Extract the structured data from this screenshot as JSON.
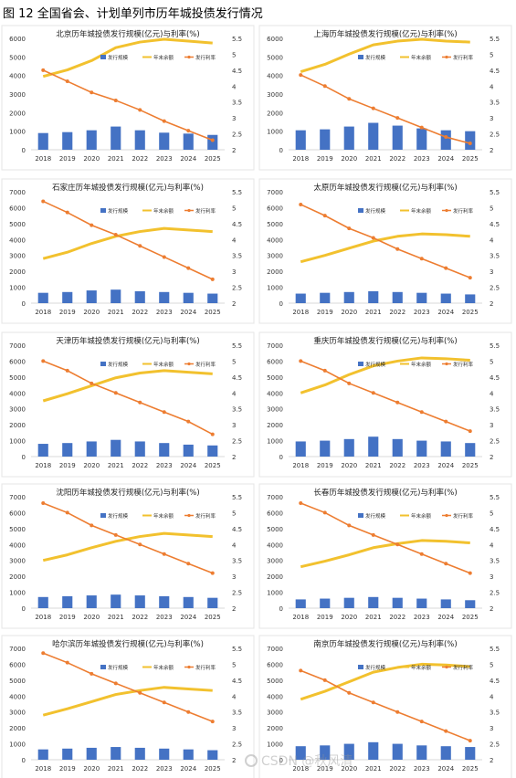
{
  "figure_title": "图 12 全国省会、计划单列市历年城投债发行情况",
  "legend": {
    "bar": "发行规模",
    "line_balance": "年末余额",
    "line_rate": "发行利率"
  },
  "colors": {
    "bar": "#4472C4",
    "balance": "#F2C12E",
    "rate": "#ED7D31",
    "axis_text": "#333333",
    "grid": "#D9D9D9"
  },
  "watermark": "CSDN @秋风清",
  "chart_data": [
    {
      "type": "bar+line",
      "title": "北京历年城投债发行规模(亿元)与利率(%)",
      "categories": [
        "2018",
        "2019",
        "2020",
        "2021",
        "2022",
        "2023",
        "2024",
        "2025"
      ],
      "ylim": [
        0,
        6000
      ],
      "y_ticks": [
        "0",
        "1000",
        "2000",
        "3000",
        "4000",
        "5000",
        "6000"
      ],
      "y2lim": [
        2,
        5.5
      ],
      "y2_ticks": [
        "2",
        "2.5",
        "3",
        "3.5",
        "4",
        "4.5",
        "5",
        "5.5"
      ],
      "series": [
        {
          "name": "发行规模",
          "axis": "left",
          "values": [
            900,
            950,
            1050,
            1250,
            1050,
            920,
            870,
            800
          ]
        },
        {
          "name": "年末余额",
          "axis": "left",
          "values": [
            3950,
            4300,
            4800,
            5500,
            5800,
            5950,
            5850,
            5750
          ]
        },
        {
          "name": "发行利率",
          "axis": "right",
          "values": [
            4.5,
            4.15,
            3.8,
            3.55,
            3.25,
            2.9,
            2.6,
            2.3
          ]
        }
      ]
    },
    {
      "type": "bar+line",
      "title": "上海历年城投债发行规模(亿元)与利率(%)",
      "categories": [
        "2018",
        "2019",
        "2020",
        "2021",
        "2022",
        "2023",
        "2024",
        "2025"
      ],
      "ylim": [
        0,
        6000
      ],
      "y_ticks": [
        "0",
        "1000",
        "2000",
        "3000",
        "4000",
        "5000",
        "6000"
      ],
      "y2lim": [
        2,
        5.5
      ],
      "y2_ticks": [
        "2",
        "2.5",
        "3",
        "3.5",
        "4",
        "4.5",
        "5",
        "5.5"
      ],
      "series": [
        {
          "name": "发行规模",
          "axis": "left",
          "values": [
            1050,
            1100,
            1250,
            1450,
            1300,
            1150,
            1050,
            1000
          ]
        },
        {
          "name": "年末余额",
          "axis": "left",
          "values": [
            4200,
            4600,
            5150,
            5650,
            5850,
            5950,
            5850,
            5800
          ]
        },
        {
          "name": "发行利率",
          "axis": "right",
          "values": [
            4.35,
            4.0,
            3.6,
            3.3,
            3.0,
            2.7,
            2.4,
            2.2
          ]
        }
      ]
    },
    {
      "type": "bar+line",
      "title": "石家庄历年城投债发行规模(亿元)与利率(%)",
      "categories": [
        "2018",
        "2019",
        "2020",
        "2021",
        "2022",
        "2023",
        "2024",
        "2025"
      ],
      "ylim": [
        0,
        7000
      ],
      "y_ticks": [
        "0",
        "1000",
        "2000",
        "3000",
        "4000",
        "5000",
        "6000",
        "7000"
      ],
      "y2lim": [
        2,
        5.5
      ],
      "y2_ticks": [
        "2",
        "2.5",
        "3",
        "3.5",
        "4",
        "4.5",
        "5",
        "5.5"
      ],
      "series": [
        {
          "name": "发行规模",
          "axis": "left",
          "values": [
            650,
            700,
            800,
            850,
            750,
            700,
            650,
            600
          ]
        },
        {
          "name": "年末余额",
          "axis": "left",
          "values": [
            2800,
            3200,
            3750,
            4200,
            4500,
            4700,
            4600,
            4500
          ]
        },
        {
          "name": "发行利率",
          "axis": "right",
          "values": [
            5.2,
            4.85,
            4.45,
            4.15,
            3.8,
            3.45,
            3.1,
            2.75
          ]
        }
      ]
    },
    {
      "type": "bar+line",
      "title": "太原历年城投债发行规模(亿元)与利率(%)",
      "categories": [
        "2018",
        "2019",
        "2020",
        "2021",
        "2022",
        "2023",
        "2024",
        "2025"
      ],
      "ylim": [
        0,
        7000
      ],
      "y_ticks": [
        "0",
        "1000",
        "2000",
        "3000",
        "4000",
        "5000",
        "6000",
        "7000"
      ],
      "y2lim": [
        2,
        5.5
      ],
      "y2_ticks": [
        "2",
        "2.5",
        "3",
        "3.5",
        "4",
        "4.5",
        "5",
        "5.5"
      ],
      "series": [
        {
          "name": "发行规模",
          "axis": "left",
          "values": [
            600,
            650,
            700,
            750,
            700,
            650,
            600,
            550
          ]
        },
        {
          "name": "年末余额",
          "axis": "left",
          "values": [
            2600,
            3000,
            3450,
            3900,
            4200,
            4350,
            4300,
            4200
          ]
        },
        {
          "name": "发行利率",
          "axis": "right",
          "values": [
            5.1,
            4.75,
            4.35,
            4.05,
            3.7,
            3.4,
            3.1,
            2.8
          ]
        }
      ]
    },
    {
      "type": "bar+line",
      "title": "天津历年城投债发行规模(亿元)与利率(%)",
      "categories": [
        "2018",
        "2019",
        "2020",
        "2021",
        "2022",
        "2023",
        "2024",
        "2025"
      ],
      "ylim": [
        0,
        7000
      ],
      "y_ticks": [
        "0",
        "1000",
        "2000",
        "3000",
        "4000",
        "5000",
        "6000",
        "7000"
      ],
      "y2lim": [
        2,
        5.5
      ],
      "y2_ticks": [
        "2",
        "2.5",
        "3",
        "3.5",
        "4",
        "4.5",
        "5",
        "5.5"
      ],
      "series": [
        {
          "name": "发行规模",
          "axis": "left",
          "values": [
            800,
            850,
            950,
            1050,
            950,
            850,
            750,
            700
          ]
        },
        {
          "name": "年末余额",
          "axis": "left",
          "values": [
            3500,
            3950,
            4450,
            4950,
            5250,
            5400,
            5300,
            5200
          ]
        },
        {
          "name": "发行利率",
          "axis": "right",
          "values": [
            5.0,
            4.7,
            4.3,
            4.0,
            3.7,
            3.4,
            3.1,
            2.7
          ]
        }
      ]
    },
    {
      "type": "bar+line",
      "title": "重庆历年城投债发行规模(亿元)与利率(%)",
      "categories": [
        "2018",
        "2019",
        "2020",
        "2021",
        "2022",
        "2023",
        "2024",
        "2025"
      ],
      "ylim": [
        0,
        7000
      ],
      "y_ticks": [
        "0",
        "1000",
        "2000",
        "3000",
        "4000",
        "5000",
        "6000",
        "7000"
      ],
      "y2lim": [
        2,
        5.5
      ],
      "y2_ticks": [
        "2",
        "2.5",
        "3",
        "3.5",
        "4",
        "4.5",
        "5",
        "5.5"
      ],
      "series": [
        {
          "name": "发行规模",
          "axis": "left",
          "values": [
            950,
            1000,
            1100,
            1250,
            1100,
            1000,
            950,
            850
          ]
        },
        {
          "name": "年末余额",
          "axis": "left",
          "values": [
            4000,
            4500,
            5150,
            5700,
            6000,
            6200,
            6150,
            6050
          ]
        },
        {
          "name": "发行利率",
          "axis": "right",
          "values": [
            5.0,
            4.7,
            4.3,
            4.0,
            3.7,
            3.4,
            3.1,
            2.8
          ]
        }
      ]
    },
    {
      "type": "bar+line",
      "title": "沈阳历年城投债发行规模(亿元)与利率(%)",
      "categories": [
        "2018",
        "2019",
        "2020",
        "2021",
        "2022",
        "2023",
        "2024",
        "2025"
      ],
      "ylim": [
        0,
        7000
      ],
      "y_ticks": [
        "0",
        "1000",
        "2000",
        "3000",
        "4000",
        "5000",
        "6000",
        "7000"
      ],
      "y2lim": [
        2,
        5.5
      ],
      "y2_ticks": [
        "2",
        "2.5",
        "3",
        "3.5",
        "4",
        "4.5",
        "5",
        "5.5"
      ],
      "series": [
        {
          "name": "发行规模",
          "axis": "left",
          "values": [
            700,
            750,
            800,
            850,
            800,
            750,
            700,
            650
          ]
        },
        {
          "name": "年末余额",
          "axis": "left",
          "values": [
            3000,
            3350,
            3800,
            4200,
            4500,
            4700,
            4600,
            4500
          ]
        },
        {
          "name": "发行利率",
          "axis": "right",
          "values": [
            5.3,
            5.0,
            4.6,
            4.3,
            4.0,
            3.7,
            3.4,
            3.1
          ]
        }
      ]
    },
    {
      "type": "bar+line",
      "title": "长春历年城投债发行规模(亿元)与利率(%)",
      "categories": [
        "2018",
        "2019",
        "2020",
        "2021",
        "2022",
        "2023",
        "2024",
        "2025"
      ],
      "ylim": [
        0,
        7000
      ],
      "y_ticks": [
        "0",
        "1000",
        "2000",
        "3000",
        "4000",
        "5000",
        "6000",
        "7000"
      ],
      "y2lim": [
        2,
        5.5
      ],
      "y2_ticks": [
        "2",
        "2.5",
        "3",
        "3.5",
        "4",
        "4.5",
        "5",
        "5.5"
      ],
      "series": [
        {
          "name": "发行规模",
          "axis": "left",
          "values": [
            550,
            600,
            650,
            700,
            650,
            600,
            550,
            500
          ]
        },
        {
          "name": "年末余额",
          "axis": "left",
          "values": [
            2600,
            2950,
            3350,
            3800,
            4050,
            4250,
            4200,
            4100
          ]
        },
        {
          "name": "发行利率",
          "axis": "right",
          "values": [
            5.3,
            5.0,
            4.6,
            4.3,
            4.0,
            3.7,
            3.4,
            3.1
          ]
        }
      ]
    },
    {
      "type": "bar+line",
      "title": "哈尔滨历年城投债发行规模(亿元)与利率(%)",
      "categories": [
        "2018",
        "2019",
        "2020",
        "2021",
        "2022",
        "2023",
        "2024",
        "2025"
      ],
      "ylim": [
        0,
        7000
      ],
      "y_ticks": [
        "0",
        "1000",
        "2000",
        "3000",
        "4000",
        "5000",
        "6000",
        "7000"
      ],
      "y2lim": [
        2,
        5.5
      ],
      "y2_ticks": [
        "2",
        "2.5",
        "3",
        "3.5",
        "4",
        "4.5",
        "5",
        "5.5"
      ],
      "series": [
        {
          "name": "发行规模",
          "axis": "left",
          "values": [
            650,
            700,
            750,
            800,
            750,
            700,
            650,
            600
          ]
        },
        {
          "name": "年末余额",
          "axis": "left",
          "values": [
            2800,
            3200,
            3650,
            4100,
            4350,
            4550,
            4450,
            4350
          ]
        },
        {
          "name": "发行利率",
          "axis": "right",
          "values": [
            5.35,
            5.05,
            4.7,
            4.4,
            4.1,
            3.8,
            3.5,
            3.2
          ]
        }
      ]
    },
    {
      "type": "bar+line",
      "title": "南京历年城投债发行规模(亿元)与利率(%)",
      "categories": [
        "2018",
        "2019",
        "2020",
        "2021",
        "2022",
        "2023",
        "2024",
        "2025"
      ],
      "ylim": [
        0,
        7000
      ],
      "y_ticks": [
        "0",
        "1000",
        "2000",
        "3000",
        "4000",
        "5000",
        "6000",
        "7000"
      ],
      "y2lim": [
        2,
        5.5
      ],
      "y2_ticks": [
        "2",
        "2.5",
        "3",
        "3.5",
        "4",
        "4.5",
        "5",
        "5.5"
      ],
      "series": [
        {
          "name": "发行规模",
          "axis": "left",
          "values": [
            850,
            900,
            1000,
            1100,
            1000,
            900,
            850,
            800
          ]
        },
        {
          "name": "年末余额",
          "axis": "left",
          "values": [
            3800,
            4300,
            4900,
            5500,
            5800,
            6000,
            5950,
            5850
          ]
        },
        {
          "name": "发行利率",
          "axis": "right",
          "values": [
            4.8,
            4.5,
            4.1,
            3.8,
            3.5,
            3.2,
            2.9,
            2.6
          ]
        }
      ]
    }
  ]
}
